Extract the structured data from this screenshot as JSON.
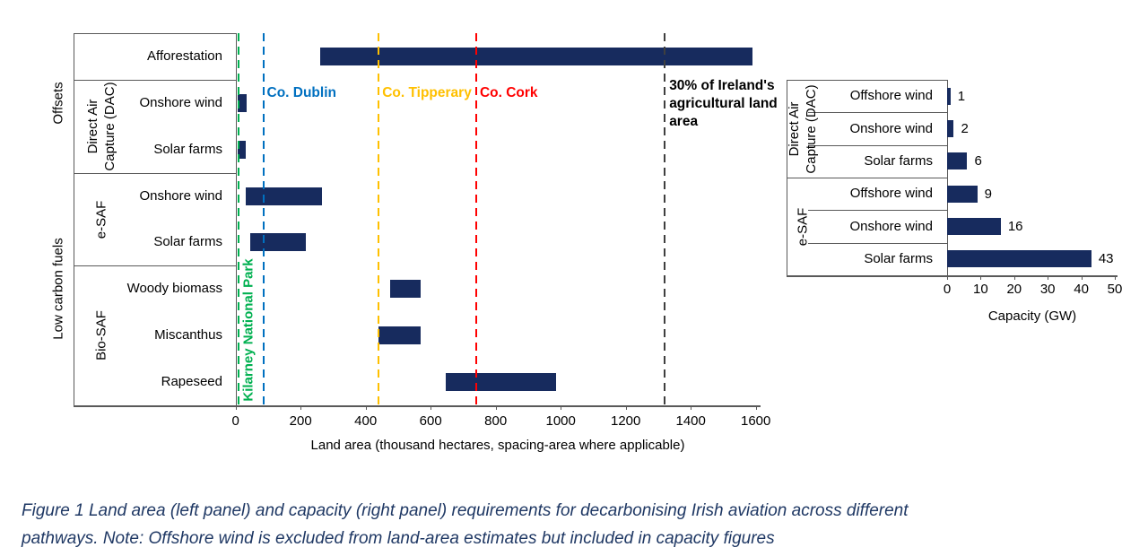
{
  "figure": {
    "caption_line1": "Figure 1 Land area (left panel) and capacity (right panel) requirements for decarbonising Irish aviation across different",
    "caption_line2": "pathways.  Note: Offshore wind is excluded from land-area estimates but included in capacity figures",
    "caption_color": "#1F3864"
  },
  "colors": {
    "bar": "#172B5E",
    "axis": "#595959",
    "text": "#000000"
  },
  "chart_data": [
    {
      "id": "land-area",
      "type": "bar",
      "orientation": "horizontal-range",
      "xlabel": "Land area (thousand hectares, spacing-area where applicable)",
      "xlim": [
        0,
        1600
      ],
      "xticks": [
        0,
        200,
        400,
        600,
        800,
        1000,
        1200,
        1400,
        1600
      ],
      "grid": false,
      "outer_groups": [
        {
          "label": "Offsets",
          "row_span": [
            0,
            2
          ]
        },
        {
          "label": "Low carbon fuels",
          "row_span": [
            3,
            7
          ]
        }
      ],
      "inner_groups": [
        {
          "label": "Direct Air\nCapture (DAC)",
          "row_span": [
            1,
            2
          ]
        },
        {
          "label": "e-SAF",
          "row_span": [
            3,
            4
          ]
        },
        {
          "label": "Bio-SAF",
          "row_span": [
            5,
            7
          ]
        }
      ],
      "rows": [
        {
          "label": "Afforestation",
          "range": [
            260,
            1590
          ]
        },
        {
          "label": "Onshore wind",
          "range": [
            5,
            35
          ]
        },
        {
          "label": "Solar farms",
          "range": [
            5,
            30
          ]
        },
        {
          "label": "Onshore wind",
          "range": [
            30,
            265
          ]
        },
        {
          "label": "Solar farms",
          "range": [
            45,
            215
          ]
        },
        {
          "label": "Woody biomass",
          "range": [
            475,
            570
          ]
        },
        {
          "label": "Miscanthus",
          "range": [
            440,
            570
          ]
        },
        {
          "label": "Rapeseed",
          "range": [
            645,
            985
          ]
        }
      ],
      "reference_lines": [
        {
          "label": "Kilarney National Park",
          "value": 10,
          "color": "#00B050",
          "placement": "rotated"
        },
        {
          "label": "Co. Dublin",
          "value": 85,
          "color": "#0070C0",
          "placement": "top"
        },
        {
          "label": "Co. Tipperary",
          "value": 440,
          "color": "#FFC000",
          "placement": "top"
        },
        {
          "label": "Co. Cork",
          "value": 740,
          "color": "#FF0000",
          "placement": "top"
        },
        {
          "label": "30% of Ireland's\nagricultural land\narea",
          "value": 1320,
          "color": "#3F3F3F",
          "placement": "top-block"
        }
      ]
    },
    {
      "id": "capacity",
      "type": "bar",
      "orientation": "horizontal",
      "xlabel": "Capacity (GW)",
      "xlim": [
        0,
        50
      ],
      "xticks": [
        0,
        10,
        20,
        30,
        40,
        50
      ],
      "grid": false,
      "inner_groups": [
        {
          "label": "Direct Air\nCapture (DAC)",
          "row_span": [
            0,
            2
          ]
        },
        {
          "label": "e-SAF",
          "row_span": [
            3,
            5
          ]
        }
      ],
      "rows": [
        {
          "label": "Offshore wind",
          "value": 1
        },
        {
          "label": "Onshore wind",
          "value": 2
        },
        {
          "label": "Solar farms",
          "value": 6
        },
        {
          "label": "Offshore wind",
          "value": 9
        },
        {
          "label": "Onshore wind",
          "value": 16
        },
        {
          "label": "Solar farms",
          "value": 43
        }
      ]
    }
  ]
}
